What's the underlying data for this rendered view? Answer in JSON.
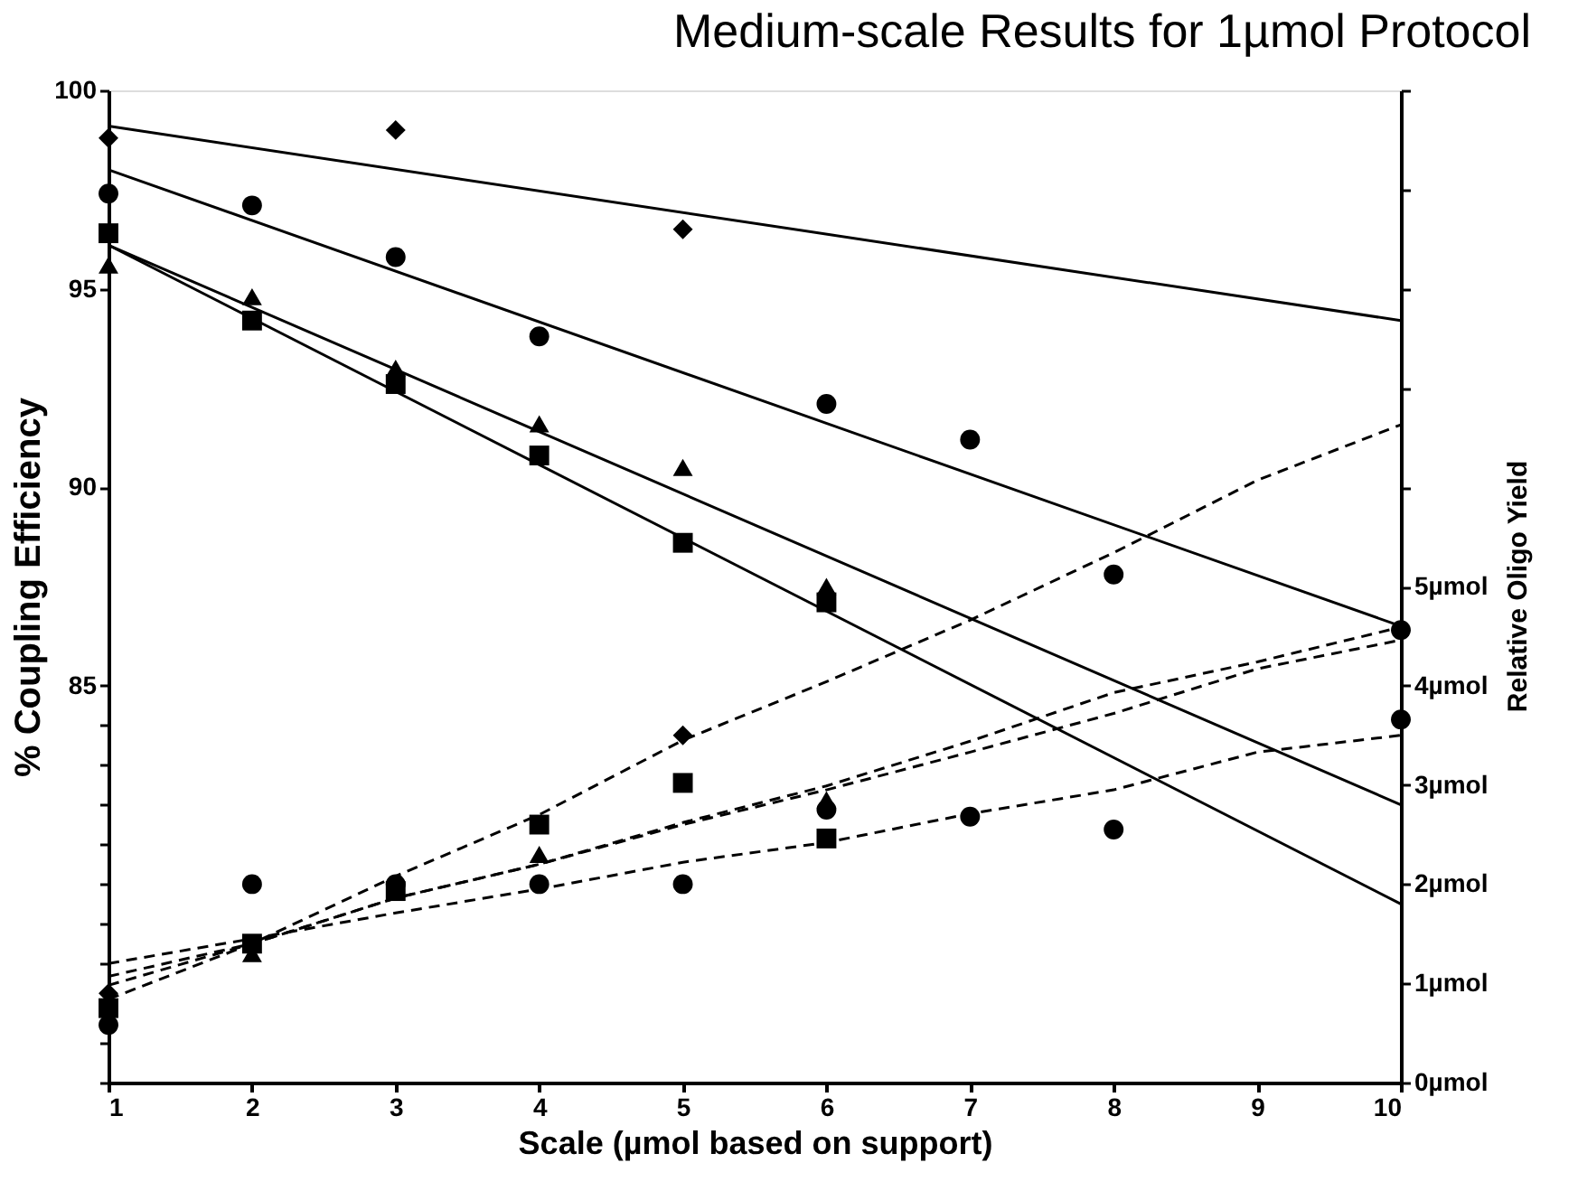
{
  "chart_data": {
    "type": "scatter",
    "title": "Medium-scale Results for 1µmol Protocol",
    "xlabel": "Scale (µmol based on support)",
    "ylabel": "% Coupling Efficiency",
    "y2label": "Relative Oligo Yield",
    "xlim": [
      1,
      10
    ],
    "xticks": [
      1,
      2,
      3,
      4,
      5,
      6,
      7,
      8,
      9,
      10
    ],
    "ylim": [
      75,
      100
    ],
    "yticks": [
      {
        "value": 75,
        "label": null
      },
      {
        "value": 76,
        "label": null
      },
      {
        "value": 77,
        "label": null
      },
      {
        "value": 78,
        "label": null
      },
      {
        "value": 79,
        "label": null
      },
      {
        "value": 80,
        "label": null
      },
      {
        "value": 81,
        "label": null
      },
      {
        "value": 82,
        "label": null
      },
      {
        "value": 83,
        "label": null
      },
      {
        "value": 84,
        "label": null
      },
      85,
      90,
      95,
      100
    ],
    "y2lim": [
      0,
      10
    ],
    "y2ticks": [
      {
        "value": 0,
        "label": "0µmol"
      },
      {
        "value": 1,
        "label": "1µmol"
      },
      {
        "value": 2,
        "label": "2µmol"
      },
      {
        "value": 3,
        "label": "3µmol"
      },
      {
        "value": 4,
        "label": "4µmol"
      },
      {
        "value": 5,
        "label": "5µmol"
      },
      {
        "value": 6,
        "label": null
      },
      {
        "value": 7,
        "label": null
      },
      {
        "value": 8,
        "label": null
      },
      {
        "value": 9,
        "label": null
      },
      {
        "value": 10,
        "label": null
      }
    ],
    "grid": false,
    "series": [
      {
        "type": "line",
        "line_style": "solid",
        "marker": "none",
        "color": "#000000",
        "x": [
          1,
          10
        ],
        "values": [
          99.1,
          94.2
        ]
      },
      {
        "type": "line",
        "line_style": "solid",
        "marker": "none",
        "color": "#000000",
        "x": [
          1,
          10
        ],
        "values": [
          98.0,
          86.5
        ]
      },
      {
        "type": "line",
        "line_style": "solid",
        "marker": "none",
        "color": "#000000",
        "x": [
          1,
          10
        ],
        "values": [
          96.1,
          79.5
        ]
      },
      {
        "type": "line",
        "line_style": "solid",
        "marker": "none",
        "color": "#000000",
        "x": [
          1,
          10
        ],
        "values": [
          96.1,
          82.0
        ]
      },
      {
        "type": "line",
        "axis": "y2",
        "line_style": "dashed",
        "marker": "none",
        "color": "#000000",
        "x": [
          1,
          2,
          3,
          4,
          5,
          6,
          7,
          8,
          9,
          10
        ],
        "values": [
          0.84,
          1.4,
          2.08,
          2.7,
          3.45,
          4.04,
          4.66,
          5.34,
          6.07,
          6.63
        ]
      },
      {
        "type": "line",
        "axis": "y2",
        "line_style": "dashed",
        "marker": "none",
        "color": "#000000",
        "x": [
          1,
          2,
          3,
          4,
          5,
          6,
          7,
          8,
          9,
          10
        ],
        "values": [
          0.98,
          1.4,
          1.86,
          2.2,
          2.62,
          2.99,
          3.44,
          3.93,
          4.24,
          4.59
        ]
      },
      {
        "type": "line",
        "axis": "y2",
        "line_style": "dashed",
        "marker": "none",
        "color": "#000000",
        "x": [
          1,
          2,
          3,
          4,
          5,
          6,
          7,
          8,
          9,
          10
        ],
        "values": [
          1.07,
          1.4,
          1.86,
          2.2,
          2.6,
          2.95,
          3.33,
          3.72,
          4.17,
          4.46
        ]
      },
      {
        "type": "line",
        "axis": "y2",
        "line_style": "dashed",
        "marker": "none",
        "color": "#000000",
        "x": [
          1,
          2,
          3,
          4,
          5,
          6,
          7,
          8,
          9,
          10
        ],
        "values": [
          1.2,
          1.45,
          1.71,
          1.95,
          2.22,
          2.42,
          2.71,
          2.95,
          3.33,
          3.5
        ]
      },
      {
        "type": "scatter",
        "marker": "diamond",
        "color": "#000000",
        "x": [
          1,
          3,
          5
        ],
        "values": [
          98.8,
          99.0,
          96.5
        ]
      },
      {
        "type": "scatter",
        "marker": "circle",
        "color": "#000000",
        "x": [
          1,
          2,
          3,
          4,
          6,
          7,
          8,
          10
        ],
        "values": [
          97.4,
          97.1,
          95.8,
          93.8,
          92.1,
          91.2,
          87.8,
          86.4
        ]
      },
      {
        "type": "scatter",
        "marker": "square",
        "color": "#000000",
        "x": [
          1,
          2,
          3,
          4,
          5,
          6
        ],
        "values": [
          96.4,
          94.2,
          92.6,
          90.8,
          88.6,
          87.1
        ]
      },
      {
        "type": "scatter",
        "marker": "triangle",
        "color": "#000000",
        "x": [
          1,
          2,
          3,
          4,
          5,
          6
        ],
        "values": [
          95.6,
          94.8,
          93.0,
          91.6,
          90.5,
          87.5
        ]
      },
      {
        "type": "scatter",
        "axis": "y2",
        "marker": "diamond",
        "color": "#000000",
        "x": [
          1,
          5
        ],
        "values": [
          0.9,
          3.5
        ]
      },
      {
        "type": "scatter",
        "axis": "y2",
        "marker": "circle",
        "color": "#000000",
        "x": [
          1,
          2,
          3,
          4,
          5,
          6,
          7,
          8,
          10
        ],
        "values": [
          0.58,
          2.0,
          2.0,
          2.0,
          2.0,
          2.75,
          2.68,
          2.55,
          3.66
        ]
      },
      {
        "type": "scatter",
        "axis": "y2",
        "marker": "square",
        "color": "#000000",
        "x": [
          1,
          2,
          3,
          4,
          5,
          6
        ],
        "values": [
          0.75,
          1.4,
          1.93,
          2.6,
          3.02,
          2.46
        ]
      },
      {
        "axis": "y2",
        "marker": "triangle",
        "color": "#000000",
        "x": [
          2,
          4,
          6
        ],
        "values": [
          1.3,
          2.3,
          2.85
        ]
      }
    ]
  }
}
